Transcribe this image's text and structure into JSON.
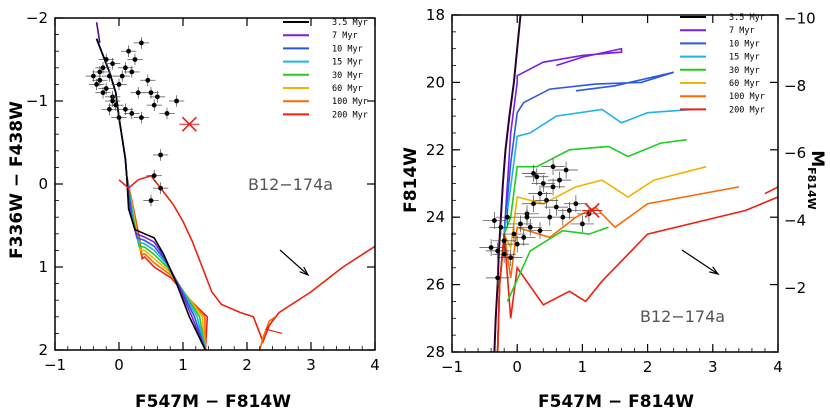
{
  "chart_data": [
    {
      "type": "scatter",
      "panel": "left",
      "xlabel": "F547M − F814W",
      "ylabel": "F336W − F438W",
      "xlim": [
        -1,
        4
      ],
      "ylim": [
        -2,
        2
      ],
      "y_inverted": true,
      "xticks": [
        "−1",
        "0",
        "1",
        "2",
        "3",
        "4"
      ],
      "yticks": [
        "−2",
        "−1",
        "0",
        "1",
        "2"
      ],
      "annotation": "B12−174a",
      "legend": [
        "3.5 Myr",
        "7 Myr",
        "10 Myr",
        "15 Myr",
        "30 Myr",
        "60 Myr",
        "100 Myr",
        "200 Myr"
      ],
      "colors": [
        "#000000",
        "#7a1ee6",
        "#2c58e6",
        "#1eb4e6",
        "#22cc22",
        "#f0b400",
        "#ff6a00",
        "#ee2010"
      ],
      "stars": [
        [
          -0.35,
          -1.2
        ],
        [
          -0.3,
          -1.35
        ],
        [
          -0.25,
          -1.4
        ],
        [
          -0.2,
          -1.15
        ],
        [
          -0.15,
          -1.3
        ],
        [
          -0.1,
          -1.05
        ],
        [
          -0.25,
          -1.1
        ],
        [
          -0.4,
          -1.3
        ],
        [
          -0.3,
          -1.25
        ],
        [
          -0.2,
          -1.5
        ],
        [
          -0.1,
          -1.45
        ],
        [
          0.0,
          -1.2
        ],
        [
          0.05,
          -1.3
        ],
        [
          0.1,
          -1.4
        ],
        [
          0.15,
          -1.6
        ],
        [
          0.2,
          -1.35
        ],
        [
          0.25,
          -1.5
        ],
        [
          0.35,
          -1.7
        ],
        [
          0.45,
          -1.25
        ],
        [
          0.5,
          -1.1
        ],
        [
          0.55,
          -0.95
        ],
        [
          0.6,
          -1.05
        ],
        [
          0.3,
          -1.1
        ],
        [
          0.2,
          -0.85
        ],
        [
          0.1,
          -0.9
        ],
        [
          0.0,
          -0.8
        ],
        [
          -0.05,
          -0.95
        ],
        [
          -0.15,
          -0.9
        ],
        [
          0.35,
          -0.8
        ],
        [
          0.75,
          -0.85
        ],
        [
          0.9,
          -1.0
        ],
        [
          0.65,
          -0.35
        ],
        [
          0.55,
          -0.1
        ],
        [
          0.65,
          0.05
        ],
        [
          0.5,
          0.2
        ],
        [
          -0.1,
          -1.0
        ]
      ],
      "highlight": [
        1.1,
        -0.72
      ]
    },
    {
      "type": "scatter",
      "panel": "right",
      "xlabel": "F547M − F814W",
      "ylabel": "F814W",
      "ylabel_right": "M_F814W",
      "xlim": [
        -1,
        4
      ],
      "ylim": [
        18,
        28
      ],
      "y_inverted": true,
      "xticks": [
        "−1",
        "0",
        "1",
        "2",
        "3",
        "4"
      ],
      "yticks": [
        "18",
        "20",
        "22",
        "24",
        "26",
        "28"
      ],
      "yticks_right": [
        "−10",
        "−8",
        "−6",
        "−4",
        "−2"
      ],
      "annotation": "B12−174a",
      "legend": [
        "3.5 Myr",
        "7 Myr",
        "10 Myr",
        "15 Myr",
        "30 Myr",
        "60 Myr",
        "100 Myr",
        "200 Myr"
      ],
      "stars": [
        [
          -0.35,
          24.1
        ],
        [
          -0.25,
          24.3
        ],
        [
          -0.15,
          24.0
        ],
        [
          -0.05,
          24.5
        ],
        [
          0.05,
          24.2
        ],
        [
          0.15,
          23.9
        ],
        [
          0.25,
          23.6
        ],
        [
          0.35,
          23.3
        ],
        [
          0.45,
          23.5
        ],
        [
          0.55,
          23.1
        ],
        [
          0.65,
          22.9
        ],
        [
          0.75,
          22.6
        ],
        [
          0.3,
          22.8
        ],
        [
          0.4,
          23.0
        ],
        [
          0.5,
          24.0
        ],
        [
          0.6,
          23.7
        ],
        [
          0.7,
          24.0
        ],
        [
          0.8,
          23.8
        ],
        [
          0.9,
          23.6
        ],
        [
          1.0,
          24.2
        ],
        [
          1.1,
          23.9
        ],
        [
          -0.4,
          24.9
        ],
        [
          -0.3,
          25.0
        ],
        [
          -0.2,
          25.1
        ],
        [
          -0.1,
          25.2
        ],
        [
          0.0,
          24.8
        ],
        [
          0.1,
          24.6
        ],
        [
          0.2,
          24.3
        ],
        [
          -0.2,
          24.7
        ],
        [
          -0.3,
          25.8
        ],
        [
          0.15,
          24.0
        ],
        [
          0.35,
          24.4
        ],
        [
          0.25,
          22.7
        ],
        [
          0.55,
          22.5
        ]
      ],
      "highlight": [
        1.15,
        23.8
      ]
    }
  ]
}
